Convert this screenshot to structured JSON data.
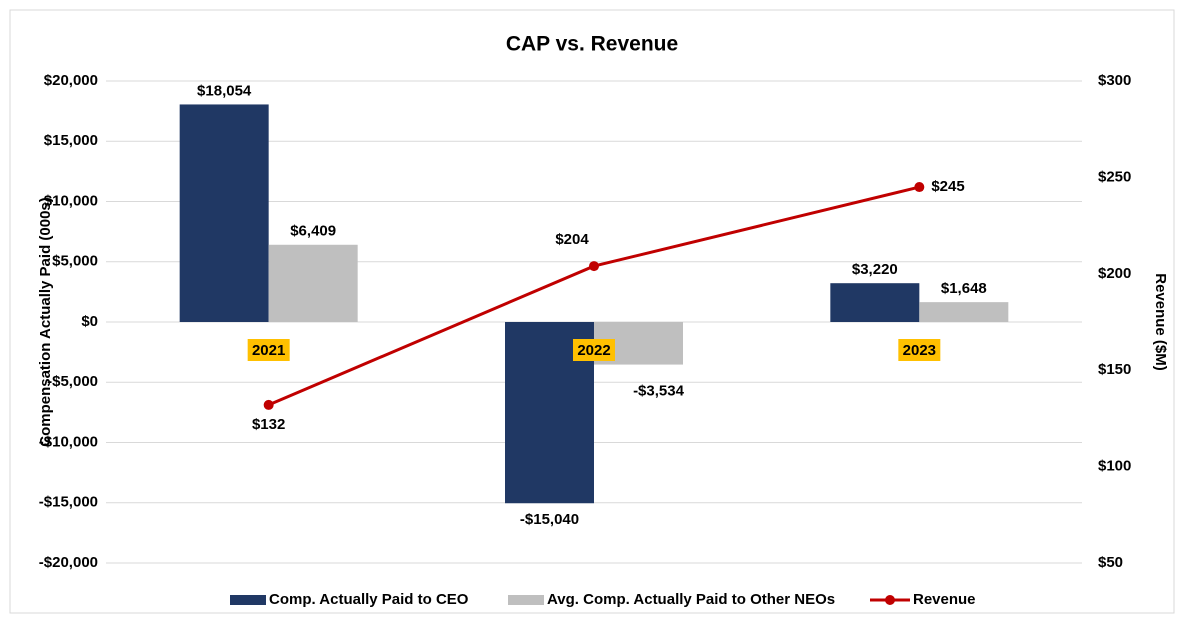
{
  "chart_data": {
    "type": "bar",
    "title": "CAP vs. Revenue",
    "ylabel": "Compensation Actually Paid (000s)",
    "y2label": "Revenue ($M)",
    "categories": [
      "2021",
      "2022",
      "2023"
    ],
    "series": [
      {
        "name": "Comp. Actually Paid to CEO",
        "color": "#203864",
        "values": [
          18054,
          -15040,
          3220
        ],
        "value_labels": [
          "$18,054",
          "-$15,040",
          "$3,220"
        ]
      },
      {
        "name": "Avg. Comp. Actually Paid to Other NEOs",
        "color": "#bfbfbf",
        "values": [
          6409,
          -3534,
          1648
        ],
        "value_labels": [
          "$6,409",
          "-$3,534",
          "$1,648"
        ]
      },
      {
        "name": "Revenue",
        "color": "#c00000",
        "type": "line",
        "axis": "y2",
        "values": [
          132,
          204,
          245
        ],
        "value_labels": [
          "$132",
          "$204",
          "$245"
        ]
      }
    ],
    "ylim": [
      -20000,
      20000
    ],
    "yticks": [
      {
        "value": -20000,
        "label": "-$20,000"
      },
      {
        "value": -15000,
        "label": "-$15,000"
      },
      {
        "value": -10000,
        "label": "-$10,000"
      },
      {
        "value": -5000,
        "label": "-$5,000"
      },
      {
        "value": 0,
        "label": "$0"
      },
      {
        "value": 5000,
        "label": "$5,000"
      },
      {
        "value": 10000,
        "label": "$10,000"
      },
      {
        "value": 15000,
        "label": "$15,000"
      },
      {
        "value": 20000,
        "label": "$20,000"
      }
    ],
    "y2lim": [
      50,
      300
    ],
    "y2ticks": [
      {
        "value": 50,
        "label": "$50"
      },
      {
        "value": 100,
        "label": "$100"
      },
      {
        "value": 150,
        "label": "$150"
      },
      {
        "value": 200,
        "label": "$200"
      },
      {
        "value": 250,
        "label": "$250"
      },
      {
        "value": 300,
        "label": "$300"
      }
    ],
    "grid": true,
    "legend": "bottom"
  }
}
